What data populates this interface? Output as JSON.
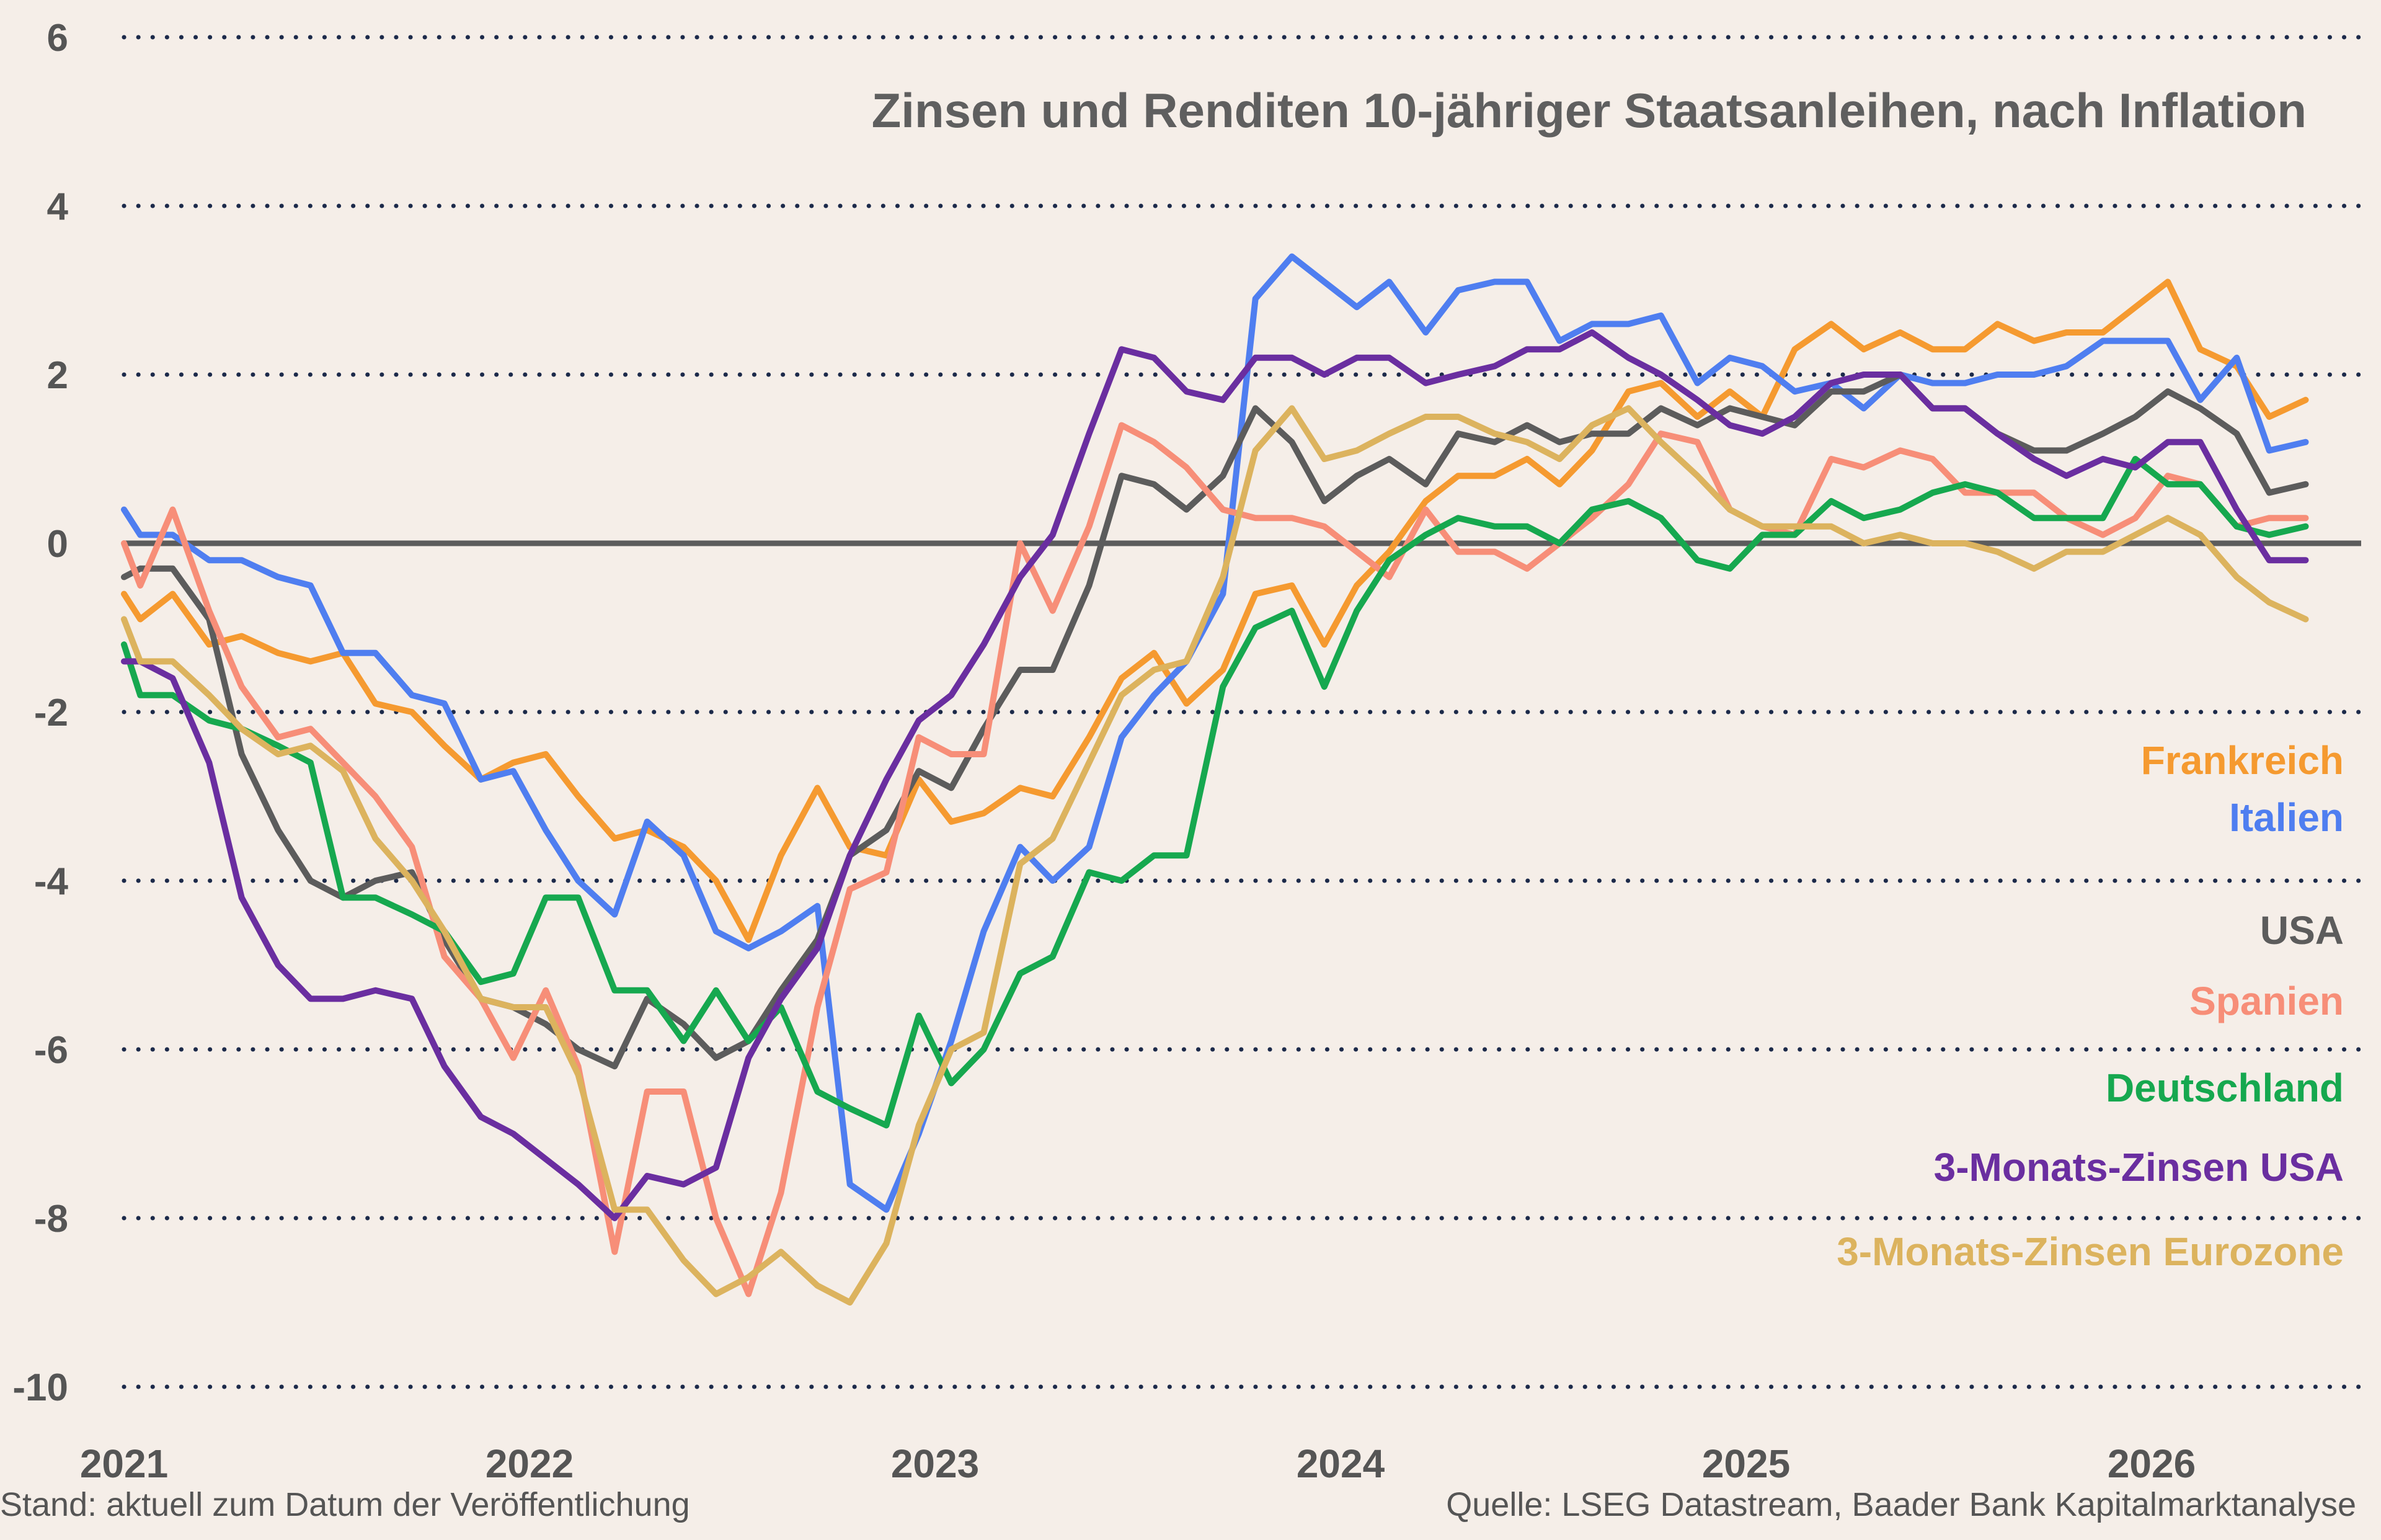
{
  "chart_data": {
    "type": "line",
    "title": "Zinsen und Renditen 10-jähriger Staatsanleihen, nach Inflation",
    "xlabel": "",
    "ylabel": "",
    "ylim": [
      -10,
      6
    ],
    "yticks": [
      6,
      4,
      2,
      0,
      -2,
      -4,
      -6,
      -8,
      -10
    ],
    "xlim": [
      2021.0,
      2026.7
    ],
    "xticks": [
      {
        "value": 2021,
        "label": "2021"
      },
      {
        "value": 2022,
        "label": "2022"
      },
      {
        "value": 2023,
        "label": "2023"
      },
      {
        "value": 2024,
        "label": "2024"
      },
      {
        "value": 2025,
        "label": "2025"
      },
      {
        "value": 2026,
        "label": "2026"
      }
    ],
    "grid": "horizontal dotted",
    "legend_position": "right, below middle",
    "x": [
      2021.0,
      2021.04,
      2021.12,
      2021.21,
      2021.29,
      2021.38,
      2021.46,
      2021.54,
      2021.62,
      2021.71,
      2021.79,
      2021.88,
      2021.96,
      2022.04,
      2022.12,
      2022.21,
      2022.29,
      2022.38,
      2022.46,
      2022.54,
      2022.62,
      2022.71,
      2022.79,
      2022.88,
      2022.96,
      2023.04,
      2023.12,
      2023.21,
      2023.29,
      2023.38,
      2023.46,
      2023.54,
      2023.62,
      2023.71,
      2023.79,
      2023.88,
      2023.96,
      2024.04,
      2024.12,
      2024.21,
      2024.29,
      2024.38,
      2024.46,
      2024.54,
      2024.62,
      2024.71,
      2024.79,
      2024.88,
      2024.96,
      2025.04,
      2025.12,
      2025.21,
      2025.29,
      2025.38,
      2025.46,
      2025.54,
      2025.62,
      2025.71,
      2025.79,
      2025.88,
      2025.96,
      2026.04,
      2026.12,
      2026.21,
      2026.29,
      2026.38
    ],
    "series": [
      {
        "name": "Frankreich",
        "color": "#f59a30",
        "values": [
          -0.6,
          -0.9,
          -0.6,
          -1.2,
          -1.1,
          -1.3,
          -1.4,
          -1.3,
          -1.9,
          -2.0,
          -2.4,
          -2.8,
          -2.6,
          -2.5,
          -3.0,
          -3.5,
          -3.4,
          -3.6,
          -4.0,
          -4.7,
          -3.7,
          -2.9,
          -3.6,
          -3.7,
          -2.8,
          -3.3,
          -3.2,
          -2.9,
          -3.0,
          -2.3,
          -1.6,
          -1.3,
          -1.9,
          -1.5,
          -0.6,
          -0.5,
          -1.2,
          -0.5,
          -0.1,
          0.5,
          0.8,
          0.8,
          1.0,
          0.7,
          1.1,
          1.8,
          1.9,
          1.5,
          1.8,
          1.5,
          2.3,
          2.6,
          2.3,
          2.5,
          2.3,
          2.3,
          2.6,
          2.4,
          2.5,
          2.5,
          2.8,
          3.1,
          2.3,
          2.1,
          1.5,
          1.7
        ]
      },
      {
        "name": "Italien",
        "color": "#4f7ef0",
        "values": [
          0.4,
          0.1,
          0.1,
          -0.2,
          -0.2,
          -0.4,
          -0.5,
          -1.3,
          -1.3,
          -1.8,
          -1.9,
          -2.8,
          -2.7,
          -3.4,
          -4.0,
          -4.4,
          -3.3,
          -3.7,
          -4.6,
          -4.8,
          -4.6,
          -4.3,
          -7.6,
          -7.9,
          -7.0,
          -5.9,
          -4.6,
          -3.6,
          -4.0,
          -3.6,
          -2.3,
          -1.8,
          -1.4,
          -0.6,
          2.9,
          3.4,
          3.1,
          2.8,
          3.1,
          2.5,
          3.0,
          3.1,
          3.1,
          2.4,
          2.6,
          2.6,
          2.7,
          1.9,
          2.2,
          2.1,
          1.8,
          1.9,
          1.6,
          2.0,
          1.9,
          1.9,
          2.0,
          2.0,
          2.1,
          2.4,
          2.4,
          2.4,
          1.7,
          2.2,
          1.1,
          1.2
        ]
      },
      {
        "name": "USA",
        "color": "#5c5c5c",
        "values": [
          -0.4,
          -0.3,
          -0.3,
          -0.9,
          -2.5,
          -3.4,
          -4.0,
          -4.2,
          -4.0,
          -3.9,
          -4.7,
          -5.4,
          -5.5,
          -5.7,
          -6.0,
          -6.2,
          -5.4,
          -5.7,
          -6.1,
          -5.9,
          -5.3,
          -4.7,
          -3.7,
          -3.4,
          -2.7,
          -2.9,
          -2.2,
          -1.5,
          -1.5,
          -0.5,
          0.8,
          0.7,
          0.4,
          0.8,
          1.6,
          1.2,
          0.5,
          0.8,
          1.0,
          0.7,
          1.3,
          1.2,
          1.4,
          1.2,
          1.3,
          1.3,
          1.6,
          1.4,
          1.6,
          1.5,
          1.4,
          1.8,
          1.8,
          2.0,
          1.6,
          1.6,
          1.3,
          1.1,
          1.1,
          1.3,
          1.5,
          1.8,
          1.6,
          1.3,
          0.6,
          0.7
        ]
      },
      {
        "name": "Spanien",
        "color": "#f78e78",
        "values": [
          0.0,
          -0.5,
          0.4,
          -0.8,
          -1.7,
          -2.3,
          -2.2,
          -2.6,
          -3.0,
          -3.6,
          -4.9,
          -5.4,
          -6.1,
          -5.3,
          -6.2,
          -8.4,
          -6.5,
          -6.5,
          -8.0,
          -8.9,
          -7.7,
          -5.5,
          -4.1,
          -3.9,
          -2.3,
          -2.5,
          -2.5,
          0.0,
          -0.8,
          0.2,
          1.4,
          1.2,
          0.9,
          0.4,
          0.3,
          0.3,
          0.2,
          -0.1,
          -0.4,
          0.4,
          -0.1,
          -0.1,
          -0.3,
          0.0,
          0.3,
          0.7,
          1.3,
          1.2,
          0.4,
          0.2,
          0.1,
          1.0,
          0.9,
          1.1,
          1.0,
          0.6,
          0.6,
          0.6,
          0.3,
          0.1,
          0.3,
          0.8,
          0.7,
          0.2,
          0.3,
          0.3
        ]
      },
      {
        "name": "Deutschland",
        "color": "#16a84f",
        "values": [
          -1.2,
          -1.8,
          -1.8,
          -2.1,
          -2.2,
          -2.4,
          -2.6,
          -4.2,
          -4.2,
          -4.4,
          -4.6,
          -5.2,
          -5.1,
          -4.2,
          -4.2,
          -5.3,
          -5.3,
          -5.9,
          -5.3,
          -5.9,
          -5.5,
          -6.5,
          -6.7,
          -6.9,
          -5.6,
          -6.4,
          -6.0,
          -5.1,
          -4.9,
          -3.9,
          -4.0,
          -3.7,
          -3.7,
          -1.7,
          -1.0,
          -0.8,
          -1.7,
          -0.8,
          -0.2,
          0.1,
          0.3,
          0.2,
          0.2,
          0.0,
          0.4,
          0.5,
          0.3,
          -0.2,
          -0.3,
          0.1,
          0.1,
          0.5,
          0.3,
          0.4,
          0.6,
          0.7,
          0.6,
          0.3,
          0.3,
          0.3,
          1.0,
          0.7,
          0.7,
          0.2,
          0.1,
          0.2
        ]
      },
      {
        "name": "3-Monats-Zinsen USA",
        "color": "#6a2ea0",
        "values": [
          -1.4,
          -1.4,
          -1.6,
          -2.6,
          -4.2,
          -5.0,
          -5.4,
          -5.4,
          -5.3,
          -5.4,
          -6.2,
          -6.8,
          -7.0,
          -7.3,
          -7.6,
          -8.0,
          -7.5,
          -7.6,
          -7.4,
          -6.1,
          -5.4,
          -4.8,
          -3.7,
          -2.8,
          -2.1,
          -1.8,
          -1.2,
          -0.4,
          0.1,
          1.3,
          2.3,
          2.2,
          1.8,
          1.7,
          2.2,
          2.2,
          2.0,
          2.2,
          2.2,
          1.9,
          2.0,
          2.1,
          2.3,
          2.3,
          2.5,
          2.2,
          2.0,
          1.7,
          1.4,
          1.3,
          1.5,
          1.9,
          2.0,
          2.0,
          1.6,
          1.6,
          1.3,
          1.0,
          0.8,
          1.0,
          0.9,
          1.2,
          1.2,
          0.4,
          -0.2,
          -0.2
        ]
      },
      {
        "name": "3-Monats-Zinsen Eurozone",
        "color": "#dcb35e",
        "values": [
          -0.9,
          -1.4,
          -1.4,
          -1.8,
          -2.2,
          -2.5,
          -2.4,
          -2.7,
          -3.5,
          -4.0,
          -4.6,
          -5.4,
          -5.5,
          -5.5,
          -6.3,
          -7.9,
          -7.9,
          -8.5,
          -8.9,
          -8.7,
          -8.4,
          -8.8,
          -9.0,
          -8.3,
          -6.9,
          -6.0,
          -5.8,
          -3.8,
          -3.5,
          -2.6,
          -1.8,
          -1.5,
          -1.4,
          -0.4,
          1.1,
          1.6,
          1.0,
          1.1,
          1.3,
          1.5,
          1.5,
          1.3,
          1.2,
          1.0,
          1.4,
          1.6,
          1.2,
          0.8,
          0.4,
          0.2,
          0.2,
          0.2,
          0.0,
          0.1,
          0.0,
          0.0,
          -0.1,
          -0.3,
          -0.1,
          -0.1,
          0.1,
          0.3,
          0.1,
          -0.4,
          -0.7,
          -0.9
        ]
      }
    ],
    "legend": [
      {
        "label": "Frankreich",
        "color": "#f59a30"
      },
      {
        "label": "Italien",
        "color": "#4f7ef0"
      },
      {
        "label": "USA",
        "color": "#5c5c5c"
      },
      {
        "label": "Spanien",
        "color": "#f78e78"
      },
      {
        "label": "Deutschland",
        "color": "#16a84f"
      },
      {
        "label": "3-Monats-Zinsen USA",
        "color": "#6a2ea0"
      },
      {
        "label": "3-Monats-Zinsen Eurozone",
        "color": "#dcb35e"
      }
    ]
  },
  "footer": {
    "left": "Stand: aktuell zum Datum der Veröffentlichung",
    "right": "Quelle: LSEG Datastream, Baader Bank Kapitalmarktanalyse"
  },
  "colors": {
    "background": "#f5eee8",
    "grid": "#1c2a4a",
    "zero_line": "#5c5c5c",
    "text": "#555555"
  }
}
